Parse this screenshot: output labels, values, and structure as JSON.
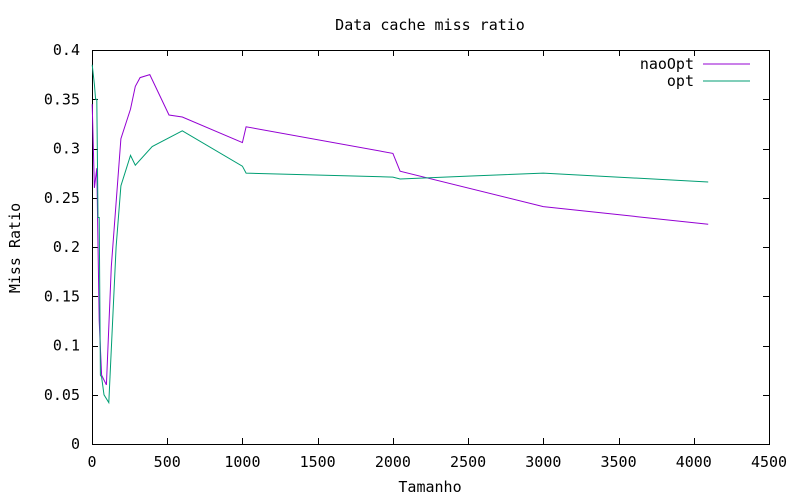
{
  "chart_data": {
    "type": "line",
    "title": "Data cache miss ratio",
    "xlabel": "Tamanho",
    "ylabel": "Miss Ratio",
    "xlim": [
      0,
      4500
    ],
    "ylim": [
      0,
      0.4
    ],
    "xticks": [
      0,
      500,
      1000,
      1500,
      2000,
      2500,
      3000,
      3500,
      4000,
      4500
    ],
    "yticks": [
      0,
      0.05,
      0.1,
      0.15,
      0.2,
      0.25,
      0.3,
      0.35,
      0.4
    ],
    "ytick_labels": [
      "0",
      "0.05",
      "0.1",
      "0.15",
      "0.2",
      "0.25",
      "0.3",
      "0.35",
      "0.4"
    ],
    "grid": false,
    "legend_position": "top-right",
    "series": [
      {
        "name": "naoOpt",
        "color": "#9400d3",
        "points": [
          [
            1,
            0.345
          ],
          [
            16,
            0.26
          ],
          [
            32,
            0.28
          ],
          [
            48,
            0.125
          ],
          [
            64,
            0.07
          ],
          [
            96,
            0.06
          ],
          [
            128,
            0.18
          ],
          [
            192,
            0.31
          ],
          [
            256,
            0.34
          ],
          [
            288,
            0.363
          ],
          [
            320,
            0.372
          ],
          [
            384,
            0.375
          ],
          [
            512,
            0.334
          ],
          [
            600,
            0.332
          ],
          [
            1000,
            0.306
          ],
          [
            1024,
            0.322
          ],
          [
            2000,
            0.295
          ],
          [
            2048,
            0.277
          ],
          [
            3000,
            0.241
          ],
          [
            4096,
            0.223
          ]
        ]
      },
      {
        "name": "opt",
        "color": "#009e73",
        "points": [
          [
            1,
            0.385
          ],
          [
            16,
            0.365
          ],
          [
            24,
            0.35
          ],
          [
            32,
            0.35
          ],
          [
            40,
            0.23
          ],
          [
            48,
            0.23
          ],
          [
            56,
            0.07
          ],
          [
            64,
            0.068
          ],
          [
            80,
            0.05
          ],
          [
            112,
            0.042
          ],
          [
            160,
            0.2
          ],
          [
            192,
            0.262
          ],
          [
            256,
            0.293
          ],
          [
            288,
            0.283
          ],
          [
            400,
            0.302
          ],
          [
            600,
            0.318
          ],
          [
            1000,
            0.282
          ],
          [
            1024,
            0.275
          ],
          [
            2000,
            0.271
          ],
          [
            2048,
            0.269
          ],
          [
            2500,
            0.272
          ],
          [
            3000,
            0.275
          ],
          [
            4096,
            0.266
          ]
        ]
      }
    ]
  }
}
